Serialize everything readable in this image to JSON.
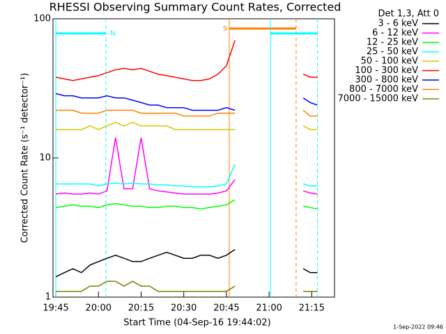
{
  "chart_data": {
    "type": "line",
    "title": "RHESSI Observing Summary Count Rates, Corrected",
    "xlabel": "Start Time (04-Sep-16 19:44:02)",
    "ylabel": "Corrected Count Rate (s⁻¹ detector⁻¹)",
    "legend_title": "Det 1,3, Att 0",
    "footer": "1-Sep-2022 09:46",
    "log_y": true,
    "legend_position": "right",
    "xlim": [
      1184,
      1283
    ],
    "ylim": [
      1,
      100
    ],
    "xticks": [
      {
        "value": 1185,
        "label": "19:45"
      },
      {
        "value": 1200,
        "label": "20:00"
      },
      {
        "value": 1215,
        "label": "20:15"
      },
      {
        "value": 1230,
        "label": "20:30"
      },
      {
        "value": 1245,
        "label": "20:45"
      },
      {
        "value": 1260,
        "label": "21:00"
      },
      {
        "value": 1275,
        "label": "21:15"
      }
    ],
    "yticks": [
      1,
      10,
      100
    ],
    "x": [
      1185,
      1188,
      1191,
      1194,
      1197,
      1200,
      1203,
      1206,
      1209,
      1212,
      1215,
      1218,
      1221,
      1224,
      1227,
      1230,
      1233,
      1236,
      1239,
      1242,
      1245,
      1248,
      1251,
      1254,
      1257,
      1260,
      1263,
      1266,
      1269,
      1272,
      1274.5,
      1277
    ],
    "series": [
      {
        "name": "3 - 6 keV",
        "color": "#000000",
        "values": [
          1.4,
          1.5,
          1.6,
          1.5,
          1.7,
          1.8,
          1.9,
          2,
          1.9,
          1.8,
          1.8,
          1.9,
          2,
          2.1,
          2,
          1.9,
          1.9,
          2,
          2,
          1.9,
          2,
          2.2,
          null,
          null,
          null,
          null,
          null,
          null,
          null,
          1.6,
          1.5,
          1.5
        ]
      },
      {
        "name": "6 - 12 keV",
        "color": "#ff00ff",
        "values": [
          5.5,
          5.6,
          5.5,
          5.5,
          5.6,
          5.5,
          5.8,
          14,
          6,
          6,
          14,
          6,
          5.8,
          5.7,
          5.6,
          5.5,
          5.5,
          5.5,
          5.5,
          5.6,
          5.8,
          7,
          null,
          null,
          null,
          null,
          null,
          null,
          null,
          5.8,
          5.6,
          5.5
        ]
      },
      {
        "name": "12 - 25 keV",
        "color": "#00ff00",
        "values": [
          4.4,
          4.5,
          4.6,
          4.5,
          4.5,
          4.4,
          4.6,
          4.7,
          4.6,
          4.5,
          4.5,
          4.4,
          4.4,
          4.5,
          4.5,
          4.4,
          4.4,
          4.3,
          4.4,
          4.5,
          4.6,
          5,
          null,
          null,
          null,
          null,
          null,
          null,
          null,
          4.5,
          4.4,
          4.3
        ]
      },
      {
        "name": "25 - 50 keV",
        "color": "#00ffff",
        "values": [
          6.5,
          6.5,
          6.5,
          6.5,
          6.5,
          6.3,
          6.5,
          6.6,
          6.5,
          6.6,
          6.5,
          6.5,
          6.4,
          6.4,
          6.3,
          6.3,
          6.2,
          6.2,
          6.2,
          6.3,
          6.5,
          9,
          null,
          null,
          null,
          null,
          null,
          null,
          null,
          6.5,
          6.3,
          6.3
        ]
      },
      {
        "name": "50 - 100 keV",
        "color": "#cccc00",
        "values": [
          16,
          16,
          16,
          16,
          17,
          16,
          17,
          18,
          17,
          18,
          17,
          17,
          17,
          17,
          16,
          16,
          16,
          16,
          16,
          16,
          16,
          16,
          null,
          null,
          null,
          null,
          null,
          null,
          null,
          17,
          16,
          16
        ]
      },
      {
        "name": "100 - 300 keV",
        "color": "#ff0000",
        "values": [
          38,
          37,
          36,
          37,
          38,
          39,
          41,
          43,
          44,
          43,
          44,
          42,
          40,
          39,
          38,
          37,
          36,
          36,
          37,
          40,
          46,
          70,
          null,
          null,
          null,
          null,
          null,
          null,
          null,
          40,
          38,
          38
        ]
      },
      {
        "name": "300 - 800 keV",
        "color": "#0000ff",
        "values": [
          29,
          28,
          28,
          27,
          27,
          27,
          28,
          27,
          27,
          26,
          25,
          24,
          24,
          23,
          23,
          23,
          22,
          22,
          22,
          22,
          23,
          22,
          null,
          null,
          null,
          null,
          null,
          null,
          null,
          27,
          25,
          24
        ]
      },
      {
        "name": "800 - 7000 keV",
        "color": "#ff8000",
        "values": [
          22,
          22,
          22,
          21,
          21,
          21,
          22,
          22,
          22,
          22,
          21,
          21,
          21,
          21,
          21,
          20,
          20,
          20,
          20,
          21,
          21,
          21,
          null,
          null,
          null,
          null,
          null,
          null,
          null,
          22,
          20,
          20
        ]
      },
      {
        "name": "7000 - 15000 keV",
        "color": "#808000",
        "values": [
          1.1,
          1.1,
          1.1,
          1.1,
          1.2,
          1.2,
          1.3,
          1.3,
          1.2,
          1.3,
          1.2,
          1.2,
          1.1,
          1.1,
          1.1,
          1.1,
          1.1,
          1.1,
          1.1,
          1.1,
          1.1,
          1.2,
          null,
          null,
          null,
          null,
          null,
          null,
          null,
          1.1,
          1.1,
          1.1
        ]
      }
    ],
    "flags": [
      {
        "label": "N",
        "color": "#00ffff",
        "start": 1185,
        "end": 1202.6
      },
      {
        "label": "S",
        "color": "#ff8000",
        "start": 1246,
        "end": 1269.5
      },
      {
        "color": "#00ffff",
        "start": 1260.5,
        "end": 1277
      }
    ]
  }
}
